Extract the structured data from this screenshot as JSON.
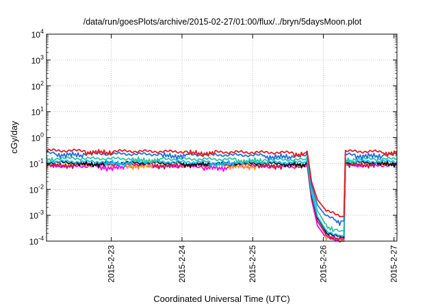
{
  "chart_data": {
    "type": "line",
    "title": "/data/run/goesPlots/archive/2015-02-27/01:00/flux/../bryn/5daysMoon.plot",
    "xlabel": "Coordinated Universal Time (UTC)",
    "ylabel": "cGy/day",
    "yscale": "log",
    "ylim": [
      0.0001,
      10000
    ],
    "xlim": [
      "2015-02-22T02:00",
      "2015-02-27T01:00"
    ],
    "grid": true,
    "legend": "none",
    "x_ticks": [
      "2015-2-23",
      "2015-2-24",
      "2015-2-25",
      "2015-2-26",
      "2015-2-27"
    ],
    "y_ticks": [
      {
        "base": "10",
        "exp": "-4"
      },
      {
        "base": "10",
        "exp": "-3"
      },
      {
        "base": "10",
        "exp": "-2"
      },
      {
        "base": "10",
        "exp": "-1"
      },
      {
        "base": "10",
        "exp": "0"
      },
      {
        "base": "10",
        "exp": "1"
      },
      {
        "base": "10",
        "exp": "2"
      },
      {
        "base": "10",
        "exp": "3"
      },
      {
        "base": "10",
        "exp": "4"
      }
    ],
    "x": [
      "2015-02-22T02:00",
      "2015-02-25T18:00",
      "2015-02-25T18:30",
      "2015-02-25T20:00",
      "2015-02-25T22:00",
      "2015-02-26T01:00",
      "2015-02-26T06:00",
      "2015-02-26T07:00",
      "2015-02-26T07:30",
      "2015-02-27T01:00"
    ],
    "series": [
      {
        "color": "#e41a1c",
        "values": [
          0.32,
          0.26,
          0.3,
          0.02,
          0.004,
          0.0015,
          0.0009,
          0.0009,
          0.3,
          0.28
        ]
      },
      {
        "color": "#1f6fe0",
        "values": [
          0.25,
          0.2,
          0.26,
          0.015,
          0.0025,
          0.0009,
          0.0006,
          0.0006,
          0.22,
          0.22
        ]
      },
      {
        "color": "#2ec4a0",
        "values": [
          0.16,
          0.14,
          0.18,
          0.01,
          0.0015,
          0.0004,
          0.00025,
          0.00025,
          0.15,
          0.15
        ]
      },
      {
        "color": "#00bfff",
        "values": [
          0.12,
          0.11,
          0.14,
          0.007,
          0.0009,
          0.00025,
          0.00016,
          0.00016,
          0.12,
          0.12
        ]
      },
      {
        "color": "#111111",
        "values": [
          0.11,
          0.1,
          0.12,
          0.006,
          0.0008,
          0.00022,
          0.00014,
          0.00014,
          0.11,
          0.11
        ]
      },
      {
        "color": "#c2185b",
        "values": [
          0.095,
          0.09,
          0.11,
          0.005,
          0.0006,
          0.00018,
          0.00012,
          0.00012,
          0.1,
          0.1
        ]
      },
      {
        "color": "#f0a030",
        "values": [
          0.09,
          0.085,
          0.1,
          0.005,
          0.0006,
          0.00016,
          0.00011,
          0.00011,
          0.095,
          0.095
        ]
      },
      {
        "color": "#ff00ff",
        "values": [
          0.08,
          0.075,
          0.09,
          0.004,
          0.0004,
          0.00013,
          0.0001,
          0.0001,
          0.085,
          0.085
        ]
      }
    ]
  }
}
